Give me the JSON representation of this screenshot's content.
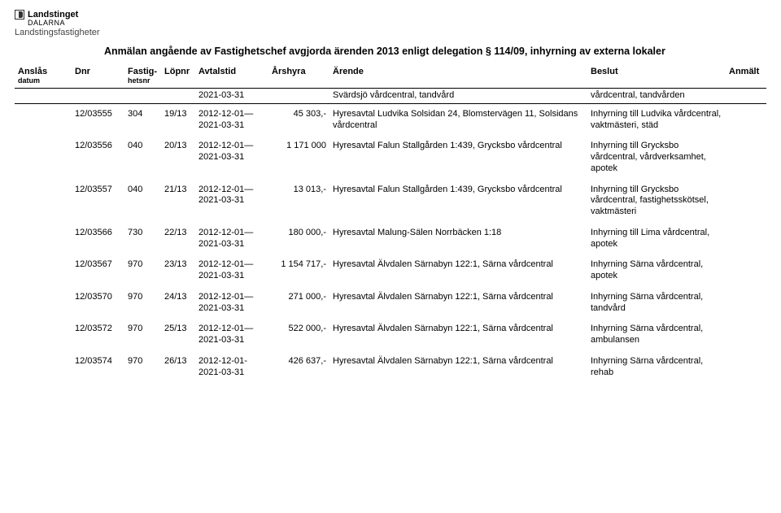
{
  "logo": {
    "line1": "Landstinget",
    "line2": "DALARNA",
    "org": "Landstingsfastigheter"
  },
  "title": "Anmälan angående av Fastighetschef avgjorda ärenden 2013 enligt delegation § 114/09, inhyrning av externa lokaler",
  "headers": {
    "anslas": "Anslås",
    "anslas2": "datum",
    "dnr": "Dnr",
    "fastig": "Fastig-",
    "fastig2": "hetsnr",
    "lopnr": "Löpnr",
    "avtalstid": "Avtalstid",
    "arshyra": "Årshyra",
    "arende": "Ärende",
    "beslut": "Beslut",
    "anmalt": "Anmält"
  },
  "toprule": {
    "avtalstid": "2021-03-31",
    "arende": "Svärdsjö vårdcentral, tandvård",
    "beslut": "vårdcentral, tandvården"
  },
  "rows": [
    {
      "dnr": "12/03555",
      "fast": "304",
      "lopnr": "19/13",
      "avtal": "2012-12-01—\n2021-03-31",
      "arshyra": "45 303,-",
      "arende": "Hyresavtal Ludvika Solsidan 24, Blomstervägen 11, Solsidans vårdcentral",
      "beslut": "Inhyrning till Ludvika vårdcentral, vaktmästeri, städ"
    },
    {
      "dnr": "12/03556",
      "fast": "040",
      "lopnr": "20/13",
      "avtal": "2012-12-01—\n2021-03-31",
      "arshyra": "1 171 000",
      "arende": "Hyresavtal Falun Stallgården 1:439, Grycksbo vårdcentral",
      "beslut": "Inhyrning till Grycksbo vårdcentral, vårdverksamhet, apotek"
    },
    {
      "dnr": "12/03557",
      "fast": "040",
      "lopnr": "21/13",
      "avtal": "2012-12-01—\n2021-03-31",
      "arshyra": "13 013,-",
      "arende": "Hyresavtal Falun Stallgården 1:439, Grycksbo vårdcentral",
      "beslut": "Inhyrning till Grycksbo vårdcentral, fastighetsskötsel, vaktmästeri"
    },
    {
      "dnr": "12/03566",
      "fast": "730",
      "lopnr": "22/13",
      "avtal": "2012-12-01—\n2021-03-31",
      "arshyra": "180 000,-",
      "arende": "Hyresavtal Malung-Sälen Norrbäcken 1:18",
      "beslut": "Inhyrning till Lima vårdcentral, apotek"
    },
    {
      "dnr": "12/03567",
      "fast": "970",
      "lopnr": "23/13",
      "avtal": "2012-12-01—\n2021-03-31",
      "arshyra": "1 154 717,-",
      "arende": "Hyresavtal Älvdalen Särnabyn 122:1, Särna vårdcentral",
      "beslut": "Inhyrning Särna vårdcentral, apotek"
    },
    {
      "dnr": "12/03570",
      "fast": "970",
      "lopnr": "24/13",
      "avtal": "2012-12-01—\n2021-03-31",
      "arshyra": "271 000,-",
      "arende": "Hyresavtal Älvdalen Särnabyn 122:1, Särna vårdcentral",
      "beslut": "Inhyrning Särna vårdcentral, tandvård"
    },
    {
      "dnr": "12/03572",
      "fast": "970",
      "lopnr": "25/13",
      "avtal": "2012-12-01—\n2021-03-31",
      "arshyra": "522 000,-",
      "arende": "Hyresavtal Älvdalen Särnabyn 122:1, Särna vårdcentral",
      "beslut": "Inhyrning Särna vårdcentral, ambulansen"
    },
    {
      "dnr": "12/03574",
      "fast": "970",
      "lopnr": "26/13",
      "avtal": "2012-12-01-\n2021-03-31",
      "arshyra": "426 637,-",
      "arende": "Hyresavtal Älvdalen Särnabyn 122:1, Särna vårdcentral",
      "beslut": "Inhyrning Särna vårdcentral, rehab"
    }
  ]
}
